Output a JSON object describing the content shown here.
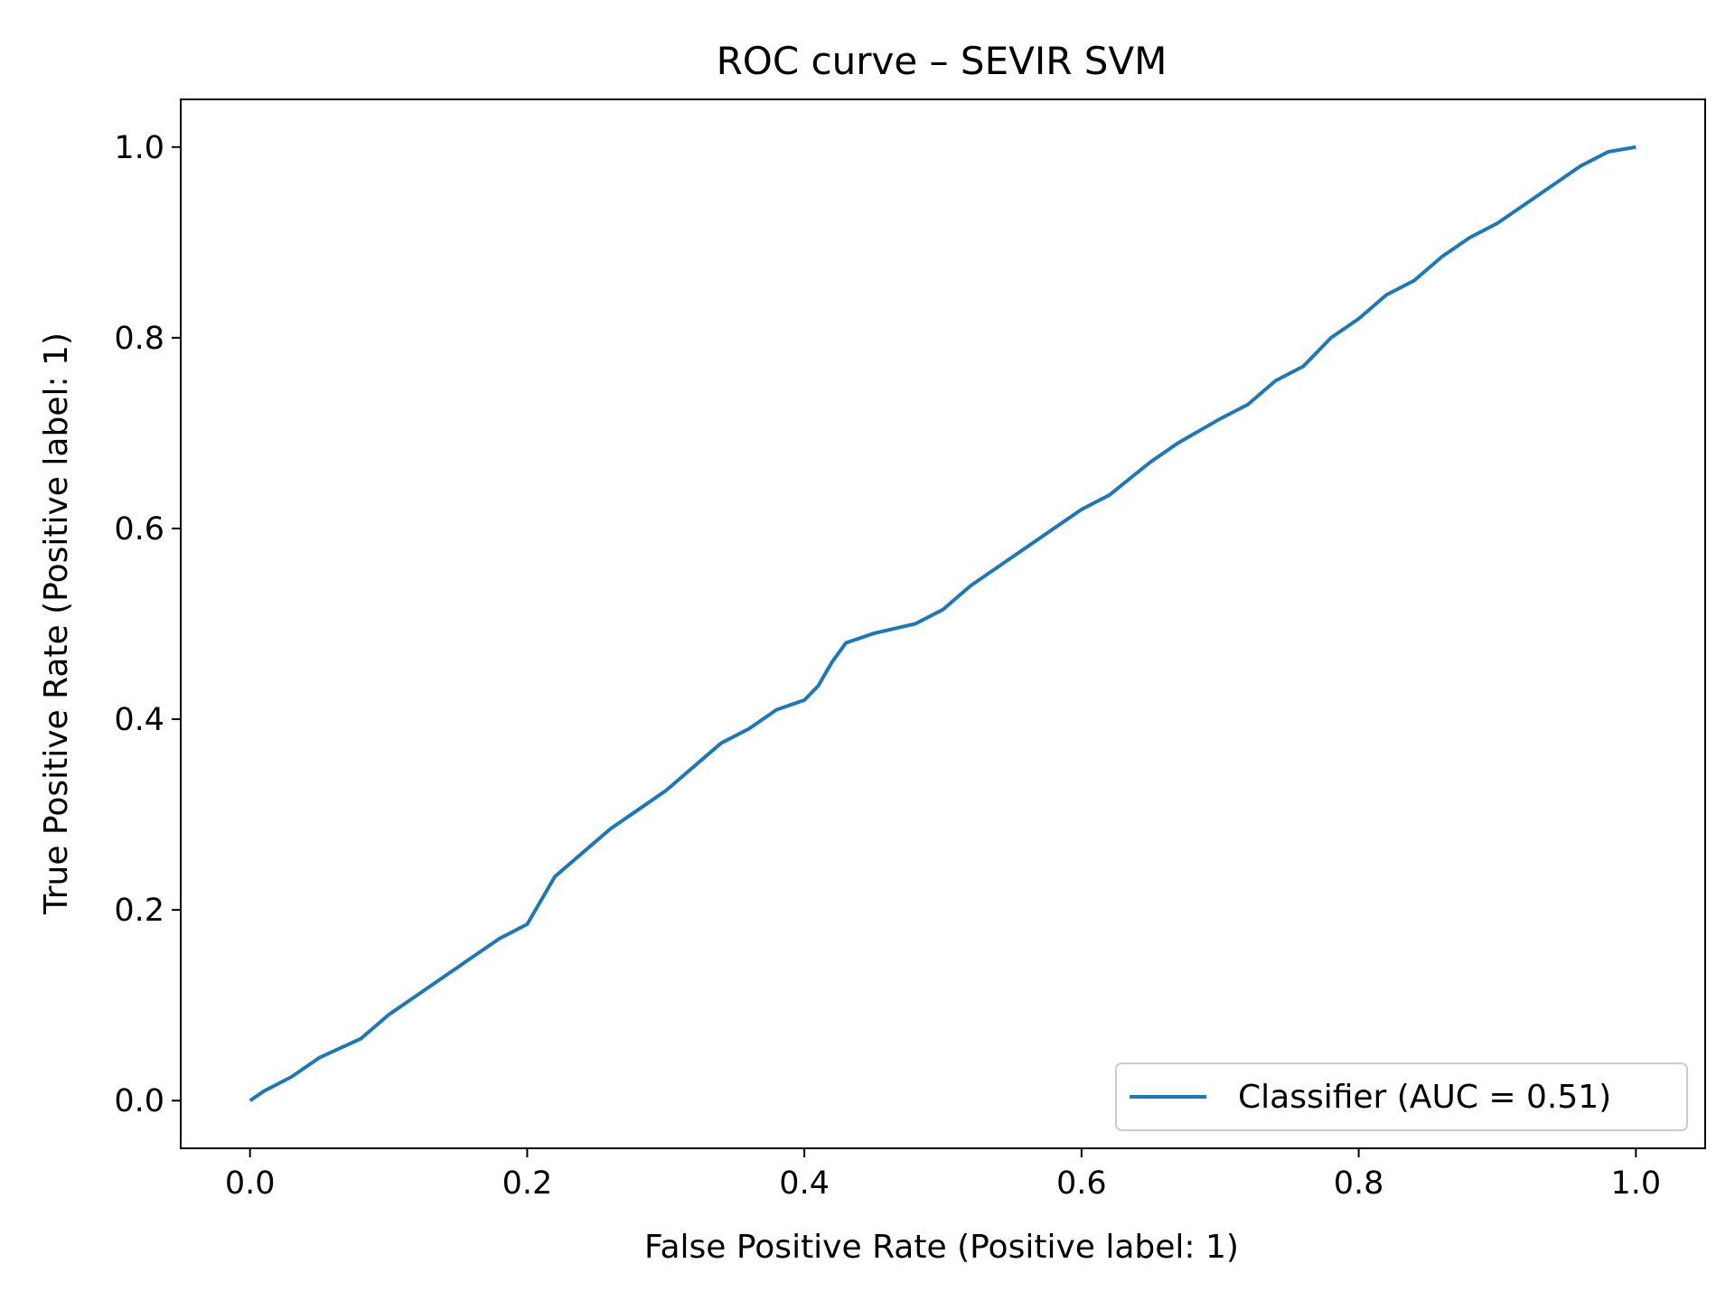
{
  "chart_data": {
    "type": "line",
    "title": "ROC curve – SEVIR SVM",
    "xlabel": "False Positive Rate (Positive label: 1)",
    "ylabel": "True Positive Rate (Positive label: 1)",
    "xlim": [
      -0.05,
      1.05
    ],
    "ylim": [
      -0.05,
      1.05
    ],
    "xticks": [
      "0.0",
      "0.2",
      "0.4",
      "0.6",
      "0.8",
      "1.0"
    ],
    "yticks": [
      "0.0",
      "0.2",
      "0.4",
      "0.6",
      "0.8",
      "1.0"
    ],
    "grid": false,
    "legend_position": "lower right",
    "legend": [
      "Classifier (AUC = 0.51)"
    ],
    "series": [
      {
        "name": "Classifier (AUC = 0.51)",
        "color": "#1f77b4",
        "x": [
          0.0,
          0.01,
          0.03,
          0.05,
          0.08,
          0.1,
          0.12,
          0.14,
          0.16,
          0.18,
          0.2,
          0.21,
          0.22,
          0.24,
          0.26,
          0.28,
          0.3,
          0.32,
          0.34,
          0.36,
          0.38,
          0.4,
          0.41,
          0.42,
          0.43,
          0.45,
          0.48,
          0.5,
          0.52,
          0.55,
          0.58,
          0.6,
          0.62,
          0.65,
          0.67,
          0.7,
          0.72,
          0.74,
          0.76,
          0.78,
          0.8,
          0.82,
          0.84,
          0.86,
          0.88,
          0.9,
          0.92,
          0.94,
          0.96,
          0.98,
          1.0
        ],
        "y": [
          0.0,
          0.01,
          0.025,
          0.045,
          0.065,
          0.09,
          0.11,
          0.13,
          0.15,
          0.17,
          0.185,
          0.21,
          0.235,
          0.26,
          0.285,
          0.305,
          0.325,
          0.35,
          0.375,
          0.39,
          0.41,
          0.42,
          0.435,
          0.46,
          0.48,
          0.49,
          0.5,
          0.515,
          0.54,
          0.57,
          0.6,
          0.62,
          0.635,
          0.67,
          0.69,
          0.715,
          0.73,
          0.755,
          0.77,
          0.8,
          0.82,
          0.845,
          0.86,
          0.885,
          0.905,
          0.92,
          0.94,
          0.96,
          0.98,
          0.995,
          1.0
        ]
      }
    ]
  }
}
